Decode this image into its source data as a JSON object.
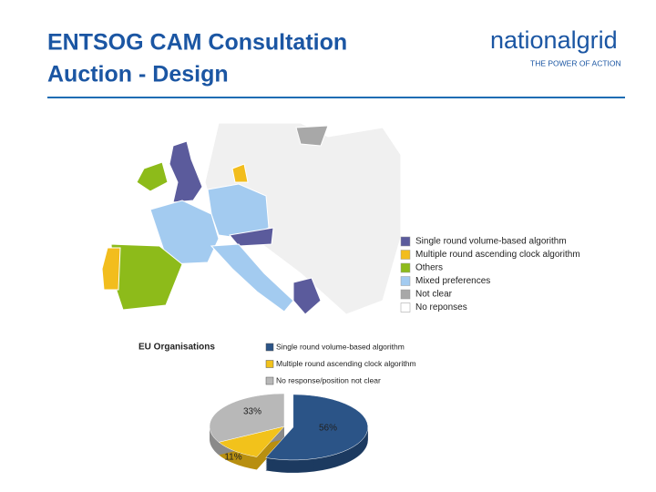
{
  "header": {
    "title_lines": [
      "ENTSOG CAM Consultation",
      "Auction - Design"
    ],
    "logo": {
      "brand": "nationalgrid",
      "tagline": "THE POWER OF ACTION"
    }
  },
  "map_legend": {
    "items": [
      {
        "name": "Single round volume-based  algorithm",
        "color": "#5b5b9c"
      },
      {
        "name": "Multiple round ascending clock algorithm",
        "color": "#f2bd1d"
      },
      {
        "name": "Others",
        "color": "#8dbb1a"
      },
      {
        "name": "Mixed preferences",
        "color": "#a3cbf0"
      },
      {
        "name": "Not clear",
        "color": "#a8a8a8"
      },
      {
        "name": "No reponses",
        "color": "#ffffff"
      }
    ]
  },
  "chart_data": {
    "type": "pie",
    "title": "EU Organisations",
    "categories": [
      "Single round volume-based algorithm",
      "Multiple round ascending clock algorithm",
      "No response/position not clear"
    ],
    "values": [
      56,
      11,
      33
    ],
    "value_labels": [
      "56%",
      "11%",
      "33%"
    ],
    "colors": [
      "#2b5487",
      "#f2c21b",
      "#b8b8b8"
    ]
  }
}
